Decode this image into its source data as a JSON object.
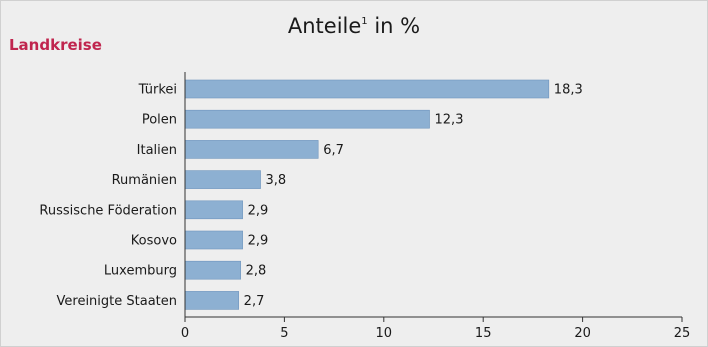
{
  "title_main": "Anteile",
  "title_sup": "1",
  "title_suffix": " in %",
  "section_label": "Landkreise",
  "colors": {
    "bar": "#8db0d2",
    "bar_stroke": "#6f95bd",
    "section": "#c0254e",
    "background": "#eeeeee"
  },
  "chart_data": {
    "type": "bar",
    "orientation": "horizontal",
    "title": "Anteile¹ in %",
    "categories": [
      "Türkei",
      "Polen",
      "Italien",
      "Rumänien",
      "Russische Föderation",
      "Kosovo",
      "Luxemburg",
      "Vereinigte Staaten"
    ],
    "values": [
      18.3,
      12.3,
      6.7,
      3.8,
      2.9,
      2.9,
      2.8,
      2.7
    ],
    "value_labels": [
      "18,3",
      "12,3",
      "6,7",
      "3,8",
      "2,9",
      "2,9",
      "2,8",
      "2,7"
    ],
    "xlim": [
      0,
      25
    ],
    "xticks": [
      0,
      5,
      10,
      15,
      20,
      25
    ],
    "grid": false,
    "legend": "none"
  }
}
